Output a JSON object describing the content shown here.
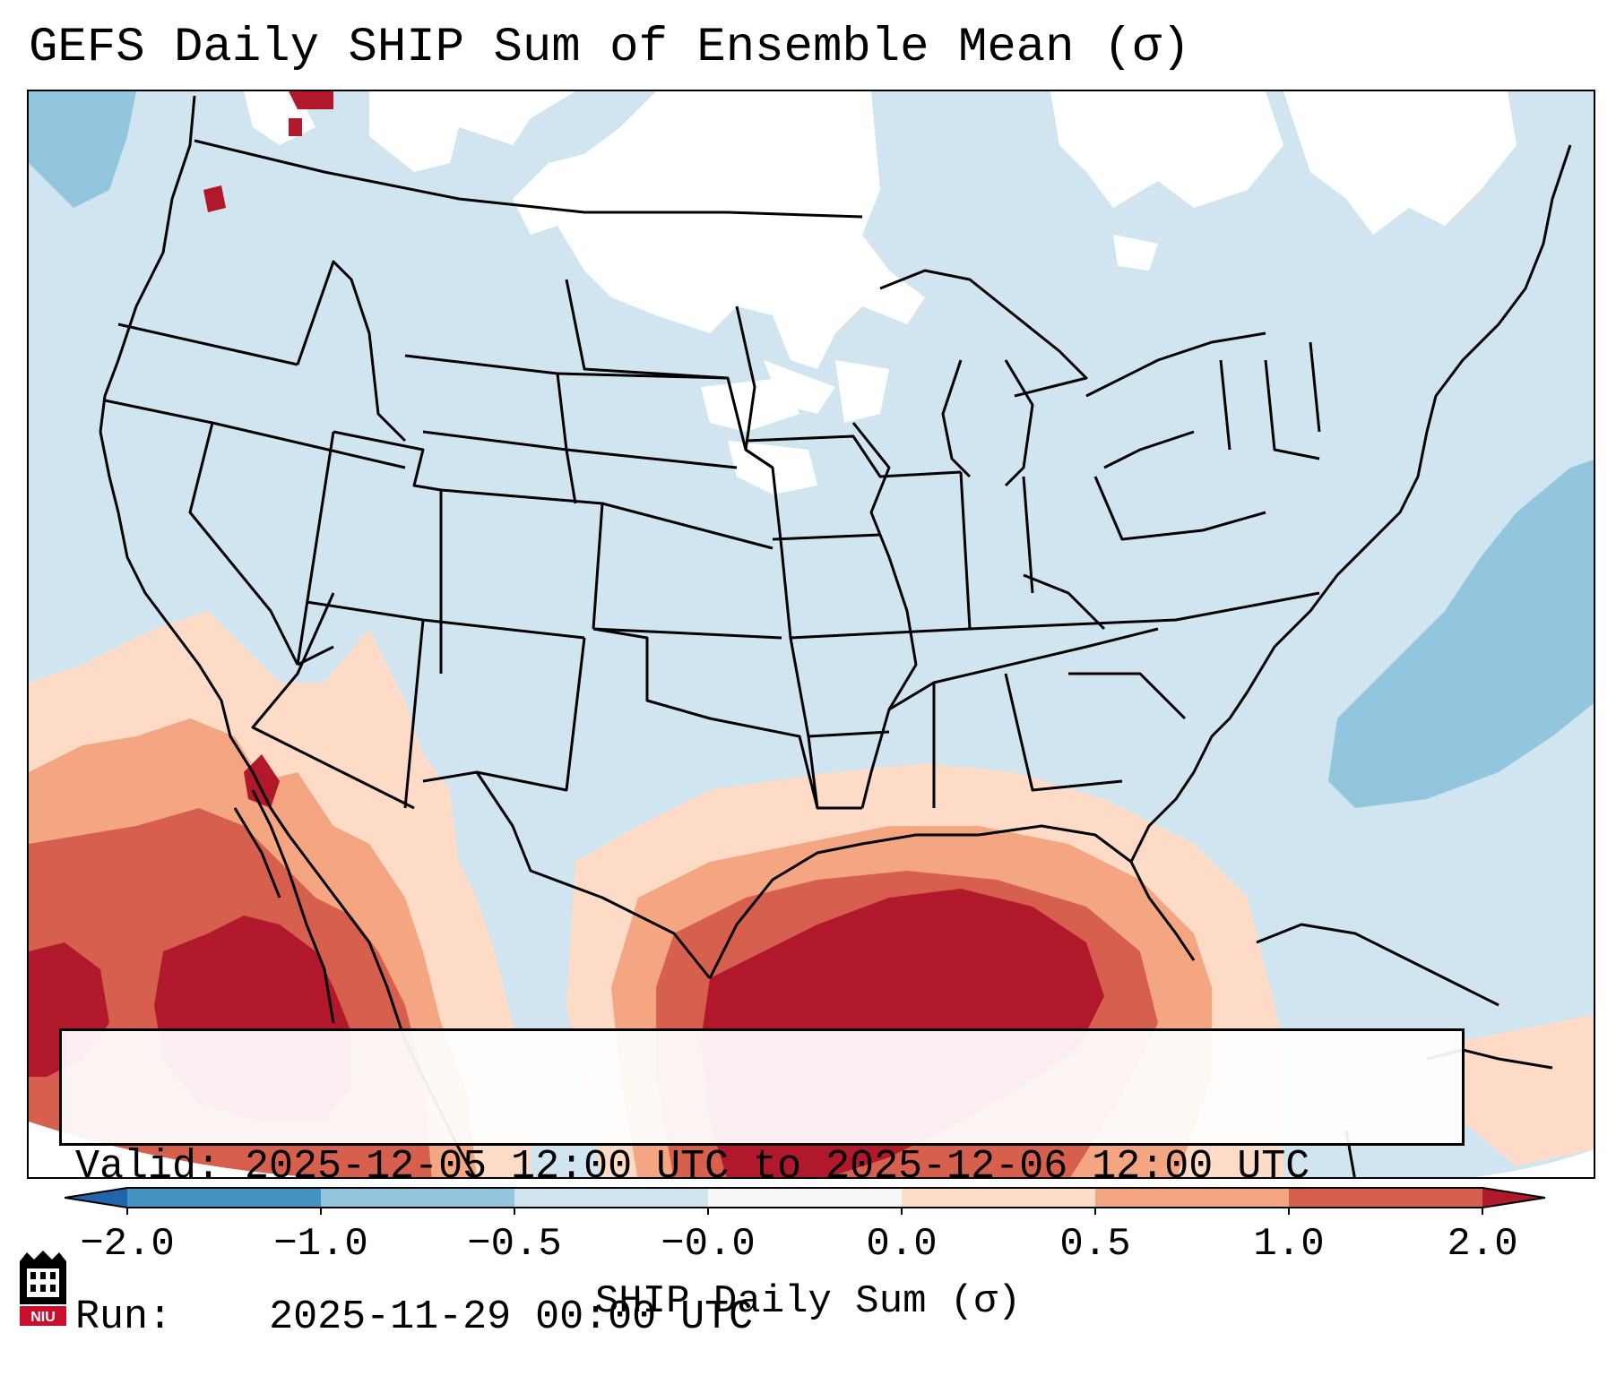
{
  "title": "GEFS Daily SHIP Sum of Ensemble Mean (σ)",
  "info": {
    "valid_label": "Valid:",
    "valid_value": "2025-12-05 12:00 UTC to 2025-12-06 12:00 UTC",
    "run_label": "Run:",
    "run_value": "2025-11-29 00:00 UTC"
  },
  "colorbar": {
    "label": "SHIP Daily Sum (σ)",
    "ticks": [
      "−2.0",
      "−1.0",
      "−0.5",
      "−0.0",
      "0.0",
      "0.5",
      "1.0",
      "2.0"
    ],
    "extend": "both",
    "bin_colors": [
      "#2166ac",
      "#4393c3",
      "#92c5de",
      "#d1e5f0",
      "#f7f7f7",
      "#fddbc7",
      "#f4a582",
      "#d6604d",
      "#b2182b"
    ]
  },
  "map": {
    "projection": "lambert-conformal",
    "region": "CONUS",
    "field_colors": {
      "neutral_low": "#d1e5f0",
      "zero": "#ffffff",
      "low": "#92c5de",
      "slight": "#fddbc7",
      "moderate": "#f4a582",
      "high": "#d6604d",
      "very_high": "#b2182b"
    }
  },
  "logo": {
    "name": "NIU logo",
    "text": "NIU",
    "color": "#c8102e"
  }
}
